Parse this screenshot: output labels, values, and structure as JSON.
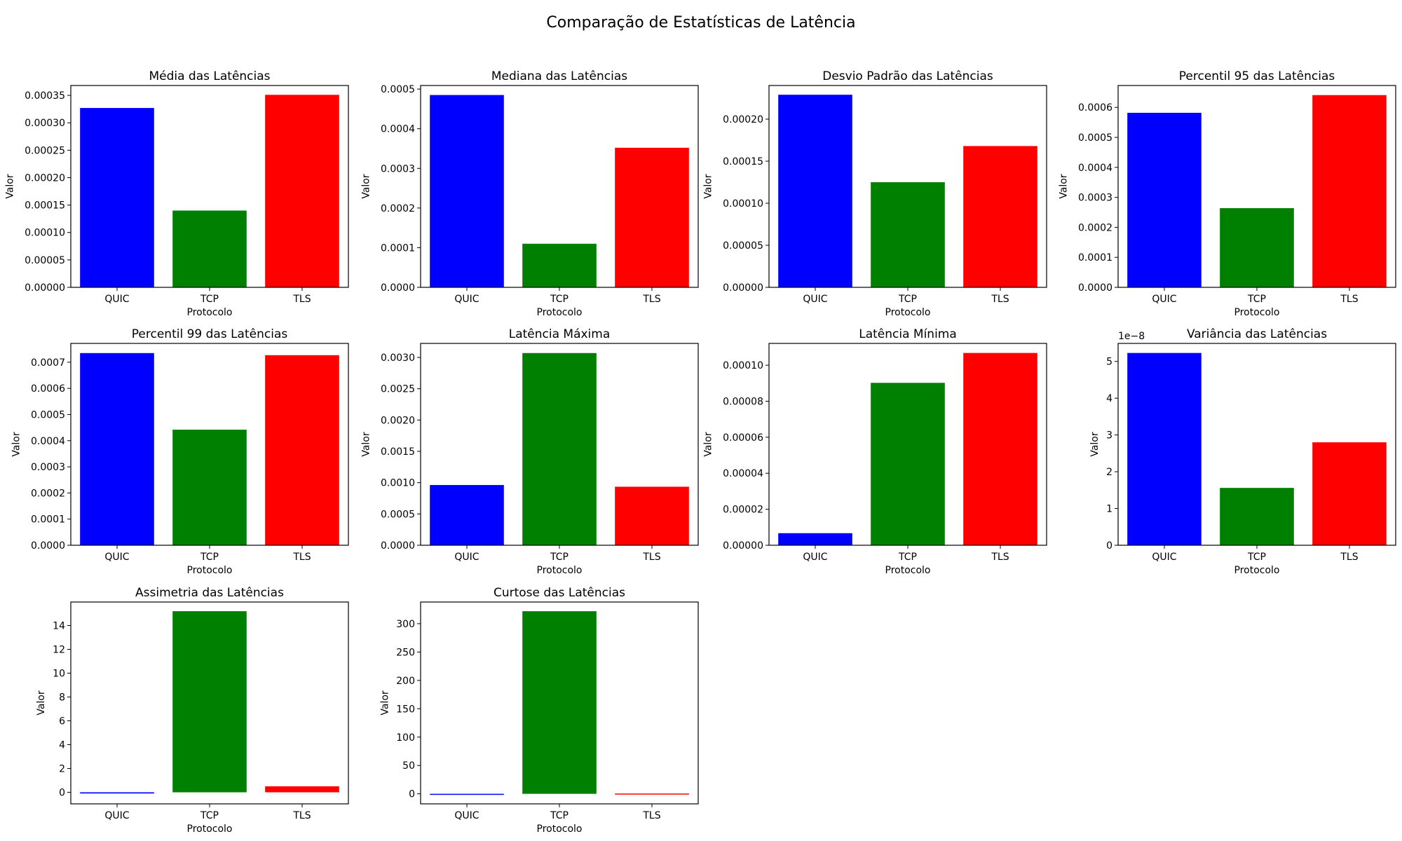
{
  "figure": {
    "title": "Comparação de Estatísticas de Latência"
  },
  "chart_data": [
    {
      "type": "bar",
      "title": "Média das Latências",
      "xlabel": "Protocolo",
      "ylabel": "Valor",
      "categories": [
        "QUIC",
        "TCP",
        "TLS"
      ],
      "values": [
        0.000327,
        0.00014,
        0.000351
      ],
      "colors": [
        "#0000ff",
        "#008000",
        "#ff0000"
      ],
      "ylim": [
        0,
        0.000368
      ],
      "yticks": [
        0,
        5e-05,
        0.0001,
        0.00015,
        0.0002,
        0.00025,
        0.0003,
        0.00035
      ],
      "yticklabels": [
        "0.00000",
        "0.00005",
        "0.00010",
        "0.00015",
        "0.00020",
        "0.00025",
        "0.00030",
        "0.00035"
      ],
      "offset_label": ""
    },
    {
      "type": "bar",
      "title": "Mediana das Latências",
      "xlabel": "Protocolo",
      "ylabel": "Valor",
      "categories": [
        "QUIC",
        "TCP",
        "TLS"
      ],
      "values": [
        0.000485,
        0.00011,
        0.000352
      ],
      "colors": [
        "#0000ff",
        "#008000",
        "#ff0000"
      ],
      "ylim": [
        0,
        0.000509
      ],
      "yticks": [
        0,
        0.0001,
        0.0002,
        0.0003,
        0.0004,
        0.0005
      ],
      "yticklabels": [
        "0.0000",
        "0.0001",
        "0.0002",
        "0.0003",
        "0.0004",
        "0.0005"
      ],
      "offset_label": ""
    },
    {
      "type": "bar",
      "title": "Desvio Padrão das Latências",
      "xlabel": "Protocolo",
      "ylabel": "Valor",
      "categories": [
        "QUIC",
        "TCP",
        "TLS"
      ],
      "values": [
        0.000229,
        0.000125,
        0.000168
      ],
      "colors": [
        "#0000ff",
        "#008000",
        "#ff0000"
      ],
      "ylim": [
        0,
        0.00024
      ],
      "yticks": [
        0,
        5e-05,
        0.0001,
        0.00015,
        0.0002
      ],
      "yticklabels": [
        "0.00000",
        "0.00005",
        "0.00010",
        "0.00015",
        "0.00020"
      ],
      "offset_label": ""
    },
    {
      "type": "bar",
      "title": "Percentil 95 das Latências",
      "xlabel": "Protocolo",
      "ylabel": "Valor",
      "categories": [
        "QUIC",
        "TCP",
        "TLS"
      ],
      "values": [
        0.000582,
        0.000264,
        0.000641
      ],
      "colors": [
        "#0000ff",
        "#008000",
        "#ff0000"
      ],
      "ylim": [
        0,
        0.000673
      ],
      "yticks": [
        0,
        0.0001,
        0.0002,
        0.0003,
        0.0004,
        0.0005,
        0.0006
      ],
      "yticklabels": [
        "0.0000",
        "0.0001",
        "0.0002",
        "0.0003",
        "0.0004",
        "0.0005",
        "0.0006"
      ],
      "offset_label": ""
    },
    {
      "type": "bar",
      "title": "Percentil 99 das Latências",
      "xlabel": "Protocolo",
      "ylabel": "Valor",
      "categories": [
        "QUIC",
        "TCP",
        "TLS"
      ],
      "values": [
        0.000735,
        0.000442,
        0.000727
      ],
      "colors": [
        "#0000ff",
        "#008000",
        "#ff0000"
      ],
      "ylim": [
        0,
        0.000772
      ],
      "yticks": [
        0,
        0.0001,
        0.0002,
        0.0003,
        0.0004,
        0.0005,
        0.0006,
        0.0007
      ],
      "yticklabels": [
        "0.0000",
        "0.0001",
        "0.0002",
        "0.0003",
        "0.0004",
        "0.0005",
        "0.0006",
        "0.0007"
      ],
      "offset_label": ""
    },
    {
      "type": "bar",
      "title": "Latência Máxima",
      "xlabel": "Protocolo",
      "ylabel": "Valor",
      "categories": [
        "QUIC",
        "TCP",
        "TLS"
      ],
      "values": [
        0.000962,
        0.00307,
        0.000935
      ],
      "colors": [
        "#0000ff",
        "#008000",
        "#ff0000"
      ],
      "ylim": [
        0,
        0.003224
      ],
      "yticks": [
        0,
        0.0005,
        0.001,
        0.0015,
        0.002,
        0.0025,
        0.003
      ],
      "yticklabels": [
        "0.0000",
        "0.0005",
        "0.0010",
        "0.0015",
        "0.0020",
        "0.0025",
        "0.0030"
      ],
      "offset_label": ""
    },
    {
      "type": "bar",
      "title": "Latência Mínima",
      "xlabel": "Protocolo",
      "ylabel": "Valor",
      "categories": [
        "QUIC",
        "TCP",
        "TLS"
      ],
      "values": [
        6.7e-06,
        9.02e-05,
        0.0001068
      ],
      "colors": [
        "#0000ff",
        "#008000",
        "#ff0000"
      ],
      "ylim": [
        0,
        0.0001121
      ],
      "yticks": [
        0,
        2e-05,
        4e-05,
        6e-05,
        8e-05,
        0.0001
      ],
      "yticklabels": [
        "0.00000",
        "0.00002",
        "0.00004",
        "0.00006",
        "0.00008",
        "0.00010"
      ],
      "offset_label": ""
    },
    {
      "type": "bar",
      "title": "Variância das Latências",
      "xlabel": "Protocolo",
      "ylabel": "Valor",
      "categories": [
        "QUIC",
        "TCP",
        "TLS"
      ],
      "values": [
        5.23e-08,
        1.56e-08,
        2.8e-08
      ],
      "colors": [
        "#0000ff",
        "#008000",
        "#ff0000"
      ],
      "ylim": [
        0,
        5.49e-08
      ],
      "yticks": [
        0,
        1e-08,
        2e-08,
        3e-08,
        4e-08,
        5e-08
      ],
      "yticklabels": [
        "0",
        "1",
        "2",
        "3",
        "4",
        "5"
      ],
      "offset_label": "1e−8"
    },
    {
      "type": "bar",
      "title": "Assimetria das Latências",
      "xlabel": "Protocolo",
      "ylabel": "Valor",
      "categories": [
        "QUIC",
        "TCP",
        "TLS"
      ],
      "values": [
        -0.1,
        15.2,
        0.5
      ],
      "colors": [
        "#0000ff",
        "#008000",
        "#ff0000"
      ],
      "ylim": [
        -0.97,
        15.97
      ],
      "yticks": [
        0,
        2,
        4,
        6,
        8,
        10,
        12,
        14
      ],
      "yticklabels": [
        "0",
        "2",
        "4",
        "6",
        "8",
        "10",
        "12",
        "14"
      ],
      "offset_label": ""
    },
    {
      "type": "bar",
      "title": "Curtose das Latências",
      "xlabel": "Protocolo",
      "ylabel": "Valor",
      "categories": [
        "QUIC",
        "TCP",
        "TLS"
      ],
      "values": [
        -1.5,
        322,
        0.5
      ],
      "colors": [
        "#0000ff",
        "#008000",
        "#ff0000"
      ],
      "ylim": [
        -17.7,
        338.2
      ],
      "yticks": [
        0,
        50,
        100,
        150,
        200,
        250,
        300
      ],
      "yticklabels": [
        "0",
        "50",
        "100",
        "150",
        "200",
        "250",
        "300"
      ],
      "offset_label": ""
    }
  ]
}
